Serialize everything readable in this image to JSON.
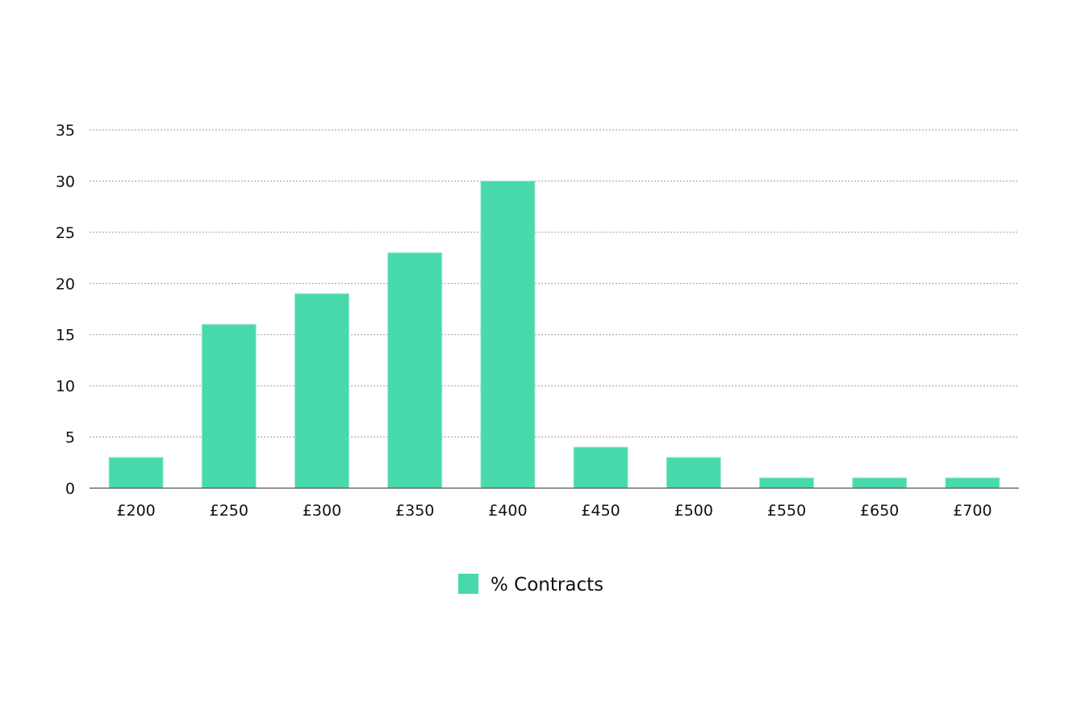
{
  "chart_data": {
    "type": "bar",
    "categories": [
      "£200",
      "£250",
      "£300",
      "£350",
      "£400",
      "£450",
      "£500",
      "£550",
      "£650",
      "£700"
    ],
    "series": [
      {
        "name": "% Contracts",
        "values": [
          3,
          16,
          19,
          23,
          30,
          4,
          3,
          1,
          1,
          1
        ],
        "color": "#48d9ad"
      }
    ],
    "ylim": [
      0,
      35
    ],
    "yticks": [
      "0",
      "5",
      "10",
      "15",
      "20",
      "25",
      "30",
      "35"
    ],
    "grid": true,
    "legend_position": "bottom-center",
    "title": "",
    "xlabel": "",
    "ylabel": ""
  },
  "colors": {
    "bar": "#48d9ad",
    "bar_edge": "#9be8ce",
    "grid": "#9a9a9a",
    "axis": "#555555",
    "text": "#111111"
  }
}
